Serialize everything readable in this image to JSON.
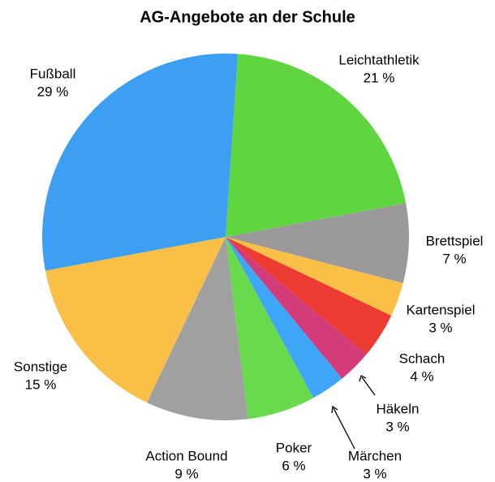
{
  "chart_data": {
    "type": "pie",
    "title": "AG-Angebote an der Schule",
    "categories": [
      "Leichtathletik",
      "Brettspiel",
      "Kartenspiel",
      "Schach",
      "Häkeln",
      "Märchen",
      "Poker",
      "Action Bound",
      "Sonstige",
      "Fußball"
    ],
    "values": [
      21,
      7,
      3,
      4,
      3,
      3,
      6,
      9,
      15,
      29
    ],
    "value_labels": [
      "21 %",
      "7 %",
      "3 %",
      "4 %",
      "3 %",
      "3 %",
      "6 %",
      "9 %",
      "15 %",
      "29 %"
    ],
    "colors": [
      "#5fd640",
      "#9a9a9a",
      "#f9bf46",
      "#ee3b32",
      "#d33b7a",
      "#3ea6f6",
      "#68da4c",
      "#a0a0a0",
      "#f9bf46",
      "#3c9ff3"
    ]
  }
}
